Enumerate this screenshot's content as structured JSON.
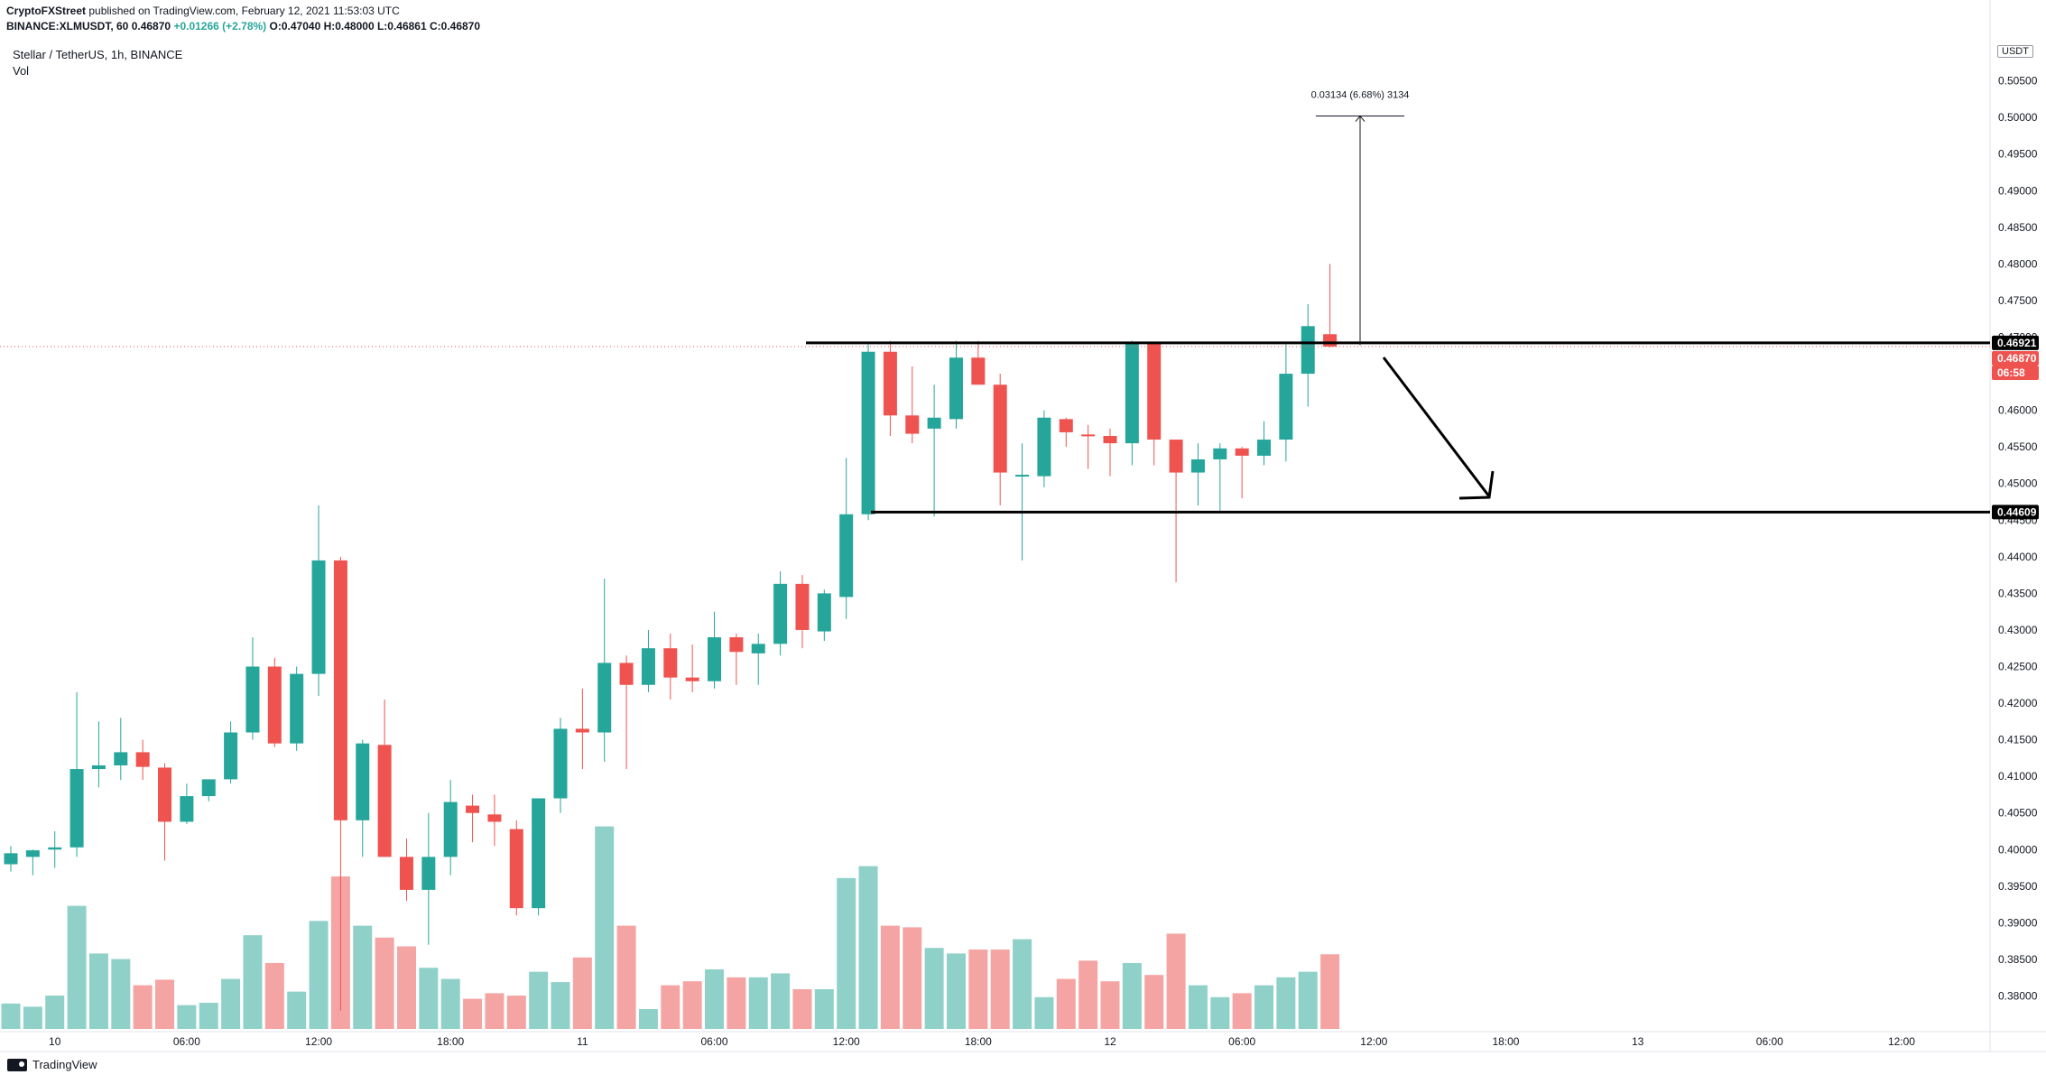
{
  "header": {
    "publisher": "CryptoFXStreet",
    "published_text": "published on TradingView.com, February 12, 2021 11:53:03 UTC",
    "ticker_line": "BINANCE:XLMUSDT, 60",
    "last": "0.46870",
    "change": "+0.01266 (+2.78%)",
    "ohlc": "O:0.47040 H:0.48000 L:0.46861 C:0.46870"
  },
  "symbol_title": "Stellar / TetherUS, 1h, BINANCE",
  "volume_label": "Vol",
  "currency_badge": "USDT",
  "footer_brand": "TradingView",
  "colors": {
    "up": "#26a69a",
    "down": "#ef5350",
    "up_volume": "#8fd1c9",
    "down_volume": "#f4a5a3",
    "line": "#000000",
    "price_dotted": "#ef5350"
  },
  "chart_data": {
    "type": "candlestick",
    "title": "Stellar / TetherUS, 1h, BINANCE",
    "interval": "1h",
    "x_tick_labels": [
      "10",
      "06:00",
      "12:00",
      "18:00",
      "11",
      "06:00",
      "12:00",
      "18:00",
      "12",
      "06:00",
      "12:00",
      "18:00",
      "13",
      "06:00",
      "12:00"
    ],
    "y_tick_labels": [
      "0.38000",
      "0.38500",
      "0.39000",
      "0.39500",
      "0.40000",
      "0.40500",
      "0.41000",
      "0.41500",
      "0.42000",
      "0.42500",
      "0.43000",
      "0.43500",
      "0.44000",
      "0.44500",
      "0.45000",
      "0.45500",
      "0.46000",
      "0.46500",
      "0.47000",
      "0.47500",
      "0.48000",
      "0.48500",
      "0.49000",
      "0.49500",
      "0.50000",
      "0.50500"
    ],
    "ylim": [
      0.3755,
      0.5105
    ],
    "candles": [
      {
        "o": 0.398,
        "h": 0.4005,
        "l": 0.397,
        "c": 0.3995,
        "v": 3.2
      },
      {
        "o": 0.399,
        "h": 0.4,
        "l": 0.3965,
        "c": 0.3999,
        "v": 2.8
      },
      {
        "o": 0.4,
        "h": 0.4025,
        "l": 0.3975,
        "c": 0.4003,
        "v": 4.2
      },
      {
        "o": 0.4003,
        "h": 0.4215,
        "l": 0.399,
        "c": 0.411,
        "v": 15.5
      },
      {
        "o": 0.411,
        "h": 0.4175,
        "l": 0.4085,
        "c": 0.4115,
        "v": 9.5
      },
      {
        "o": 0.4115,
        "h": 0.418,
        "l": 0.4095,
        "c": 0.4133,
        "v": 8.8
      },
      {
        "o": 0.4133,
        "h": 0.415,
        "l": 0.4095,
        "c": 0.4113,
        "v": 5.5
      },
      {
        "o": 0.4112,
        "h": 0.4118,
        "l": 0.3985,
        "c": 0.4038,
        "v": 6.2
      },
      {
        "o": 0.4038,
        "h": 0.409,
        "l": 0.4035,
        "c": 0.4073,
        "v": 3.0
      },
      {
        "o": 0.4073,
        "h": 0.4096,
        "l": 0.4066,
        "c": 0.4096,
        "v": 3.3
      },
      {
        "o": 0.4096,
        "h": 0.4175,
        "l": 0.409,
        "c": 0.416,
        "v": 6.3
      },
      {
        "o": 0.416,
        "h": 0.429,
        "l": 0.415,
        "c": 0.425,
        "v": 11.8
      },
      {
        "o": 0.425,
        "h": 0.4262,
        "l": 0.414,
        "c": 0.4145,
        "v": 8.3
      },
      {
        "o": 0.4145,
        "h": 0.425,
        "l": 0.4135,
        "c": 0.424,
        "v": 4.7
      },
      {
        "o": 0.424,
        "h": 0.447,
        "l": 0.421,
        "c": 0.4395,
        "v": 13.6
      },
      {
        "o": 0.4395,
        "h": 0.44,
        "l": 0.378,
        "c": 0.404,
        "v": 19.2
      },
      {
        "o": 0.404,
        "h": 0.415,
        "l": 0.399,
        "c": 0.4145,
        "v": 13.0
      },
      {
        "o": 0.4143,
        "h": 0.4205,
        "l": 0.3995,
        "c": 0.399,
        "v": 11.5
      },
      {
        "o": 0.399,
        "h": 0.4015,
        "l": 0.393,
        "c": 0.3945,
        "v": 10.4
      },
      {
        "o": 0.3945,
        "h": 0.405,
        "l": 0.387,
        "c": 0.399,
        "v": 7.7
      },
      {
        "o": 0.399,
        "h": 0.4095,
        "l": 0.3965,
        "c": 0.4065,
        "v": 6.3
      },
      {
        "o": 0.406,
        "h": 0.4075,
        "l": 0.401,
        "c": 0.405,
        "v": 3.8
      },
      {
        "o": 0.4048,
        "h": 0.4075,
        "l": 0.4005,
        "c": 0.4038,
        "v": 4.5
      },
      {
        "o": 0.4028,
        "h": 0.404,
        "l": 0.391,
        "c": 0.392,
        "v": 4.2
      },
      {
        "o": 0.392,
        "h": 0.407,
        "l": 0.391,
        "c": 0.407,
        "v": 7.2
      },
      {
        "o": 0.407,
        "h": 0.418,
        "l": 0.405,
        "c": 0.4165,
        "v": 5.9
      },
      {
        "o": 0.4165,
        "h": 0.422,
        "l": 0.411,
        "c": 0.416,
        "v": 9.0
      },
      {
        "o": 0.416,
        "h": 0.437,
        "l": 0.412,
        "c": 0.4255,
        "v": 25.5
      },
      {
        "o": 0.4255,
        "h": 0.4265,
        "l": 0.411,
        "c": 0.4225,
        "v": 13.0
      },
      {
        "o": 0.4225,
        "h": 0.43,
        "l": 0.4215,
        "c": 0.4275,
        "v": 2.5
      },
      {
        "o": 0.4275,
        "h": 0.4295,
        "l": 0.4205,
        "c": 0.4235,
        "v": 5.5
      },
      {
        "o": 0.4235,
        "h": 0.428,
        "l": 0.4215,
        "c": 0.423,
        "v": 6.0
      },
      {
        "o": 0.423,
        "h": 0.4325,
        "l": 0.422,
        "c": 0.429,
        "v": 7.5
      },
      {
        "o": 0.429,
        "h": 0.4295,
        "l": 0.4225,
        "c": 0.427,
        "v": 6.5
      },
      {
        "o": 0.4268,
        "h": 0.4295,
        "l": 0.4225,
        "c": 0.4281,
        "v": 6.5
      },
      {
        "o": 0.4281,
        "h": 0.438,
        "l": 0.4265,
        "c": 0.4363,
        "v": 7.0
      },
      {
        "o": 0.4363,
        "h": 0.4375,
        "l": 0.4275,
        "c": 0.43,
        "v": 5.0
      },
      {
        "o": 0.4298,
        "h": 0.4355,
        "l": 0.4285,
        "c": 0.435,
        "v": 5.0
      },
      {
        "o": 0.4345,
        "h": 0.4535,
        "l": 0.4315,
        "c": 0.4458,
        "v": 19.0
      },
      {
        "o": 0.4458,
        "h": 0.469,
        "l": 0.445,
        "c": 0.468,
        "v": 20.5
      },
      {
        "o": 0.468,
        "h": 0.4695,
        "l": 0.4565,
        "c": 0.4593,
        "v": 13.0
      },
      {
        "o": 0.4593,
        "h": 0.466,
        "l": 0.4555,
        "c": 0.4568,
        "v": 12.8
      },
      {
        "o": 0.4575,
        "h": 0.4635,
        "l": 0.4455,
        "c": 0.459,
        "v": 10.2
      },
      {
        "o": 0.4588,
        "h": 0.4695,
        "l": 0.4575,
        "c": 0.4672,
        "v": 9.5
      },
      {
        "o": 0.4672,
        "h": 0.4695,
        "l": 0.4635,
        "c": 0.4635,
        "v": 10.0
      },
      {
        "o": 0.4635,
        "h": 0.465,
        "l": 0.447,
        "c": 0.4515,
        "v": 10.0
      },
      {
        "o": 0.451,
        "h": 0.4555,
        "l": 0.4395,
        "c": 0.4512,
        "v": 11.3
      },
      {
        "o": 0.451,
        "h": 0.46,
        "l": 0.4495,
        "c": 0.459,
        "v": 4.0
      },
      {
        "o": 0.4588,
        "h": 0.459,
        "l": 0.455,
        "c": 0.457,
        "v": 6.3
      },
      {
        "o": 0.4567,
        "h": 0.458,
        "l": 0.452,
        "c": 0.4565,
        "v": 8.6
      },
      {
        "o": 0.4565,
        "h": 0.4575,
        "l": 0.451,
        "c": 0.4555,
        "v": 6.0
      },
      {
        "o": 0.4555,
        "h": 0.4695,
        "l": 0.4525,
        "c": 0.4692,
        "v": 8.3
      },
      {
        "o": 0.4692,
        "h": 0.4692,
        "l": 0.4525,
        "c": 0.456,
        "v": 6.8
      },
      {
        "o": 0.456,
        "h": 0.456,
        "l": 0.4365,
        "c": 0.4515,
        "v": 12.0
      },
      {
        "o": 0.4515,
        "h": 0.4555,
        "l": 0.447,
        "c": 0.4533,
        "v": 5.5
      },
      {
        "o": 0.4533,
        "h": 0.4555,
        "l": 0.446,
        "c": 0.4548,
        "v": 4.0
      },
      {
        "o": 0.4548,
        "h": 0.455,
        "l": 0.448,
        "c": 0.4538,
        "v": 4.5
      },
      {
        "o": 0.4538,
        "h": 0.4585,
        "l": 0.4525,
        "c": 0.456,
        "v": 5.5
      },
      {
        "o": 0.456,
        "h": 0.469,
        "l": 0.453,
        "c": 0.465,
        "v": 6.5
      },
      {
        "o": 0.465,
        "h": 0.4745,
        "l": 0.4605,
        "c": 0.4715,
        "v": 7.2
      },
      {
        "o": 0.4704,
        "h": 0.48,
        "l": 0.4686,
        "c": 0.4687,
        "v": 9.4
      }
    ],
    "levels": [
      {
        "price": 0.46921,
        "label": "0.46921"
      },
      {
        "price": 0.44609,
        "label": "0.44609"
      }
    ],
    "last_price": {
      "price": 0.4687,
      "label": "0.46870",
      "countdown": "06:58"
    },
    "measure": {
      "from": 0.4689,
      "to": 0.5002,
      "label": "0.03134 (6.68%) 3134"
    }
  }
}
